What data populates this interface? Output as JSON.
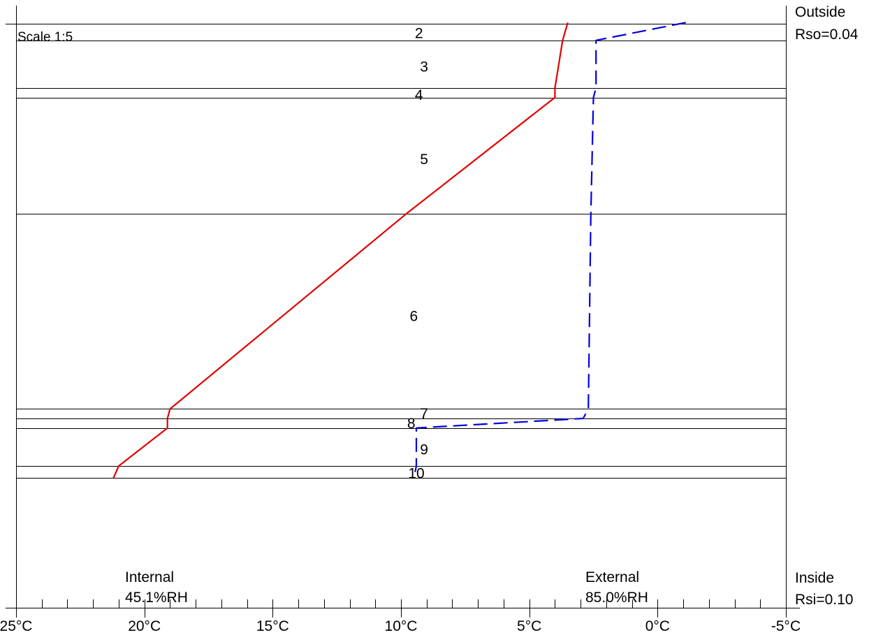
{
  "chart_data": {
    "type": "line",
    "scale_note": "Scale 1:5",
    "x_axis": {
      "min": -5,
      "max": 25,
      "reversed": true,
      "major_ticks": [
        25,
        20,
        15,
        10,
        5,
        0,
        -5
      ],
      "tick_labels": [
        "25°C",
        "20°C",
        "15°C",
        "10°C",
        "5°C",
        "0°C",
        "-5°C"
      ],
      "minor_ticks": [
        24,
        23,
        22,
        21,
        19,
        18,
        17,
        16,
        14,
        13,
        12,
        11,
        9,
        8,
        7,
        6,
        4,
        3,
        2,
        1,
        -1,
        -2,
        -3,
        -4
      ]
    },
    "depth_axis": {
      "unit": "mm",
      "min": 0,
      "max": 208
    },
    "layer_boundaries": [
      0,
      7,
      27,
      31,
      80,
      162,
      166,
      170,
      186,
      191
    ],
    "layer_labels": [
      {
        "text": "2",
        "x": 9.3,
        "depth": 4
      },
      {
        "text": "3",
        "x": 9.1,
        "depth": 18
      },
      {
        "text": "4",
        "x": 9.3,
        "depth": 30
      },
      {
        "text": "5",
        "x": 9.1,
        "depth": 57
      },
      {
        "text": "6",
        "x": 9.5,
        "depth": 123
      },
      {
        "text": "7",
        "x": 9.1,
        "depth": 164
      },
      {
        "text": "8",
        "x": 9.6,
        "depth": 168
      },
      {
        "text": "9",
        "x": 9.1,
        "depth": 179
      },
      {
        "text": "10",
        "x": 9.4,
        "depth": 189
      }
    ],
    "series": [
      {
        "color": "#e00000",
        "style": "solid",
        "points": [
          {
            "depth": -0.5,
            "x": 3.5
          },
          {
            "depth": 7,
            "x": 3.7
          },
          {
            "depth": 27,
            "x": 4.0
          },
          {
            "depth": 31,
            "x": 4.0
          },
          {
            "depth": 80,
            "x": 9.8
          },
          {
            "depth": 162,
            "x": 19.0
          },
          {
            "depth": 166,
            "x": 19.1
          },
          {
            "depth": 170,
            "x": 19.1
          },
          {
            "depth": 186,
            "x": 21.0
          },
          {
            "depth": 191,
            "x": 21.2
          }
        ]
      },
      {
        "color": "#0000e0",
        "style": "dashed",
        "points": [
          {
            "depth": -0.5,
            "x": -1.1
          },
          {
            "depth": 7,
            "x": 2.4
          },
          {
            "depth": 27,
            "x": 2.4
          },
          {
            "depth": 31,
            "x": 2.5
          },
          {
            "depth": 80,
            "x": 2.6
          },
          {
            "depth": 162,
            "x": 2.7
          },
          {
            "depth": 166,
            "x": 2.9
          },
          {
            "depth": 170,
            "x": 9.4
          },
          {
            "depth": 186,
            "x": 9.4
          },
          {
            "depth": 191,
            "x": 9.5
          }
        ]
      }
    ],
    "annotations": {
      "outside_label": "Outside",
      "outside_resistance": "Rso=0.04",
      "inside_label": "Inside",
      "inside_resistance": "Rsi=0.10",
      "internal_label": "Internal",
      "internal_rh": "45.1%RH",
      "external_label": "External",
      "external_rh": "85.0%RH"
    }
  }
}
